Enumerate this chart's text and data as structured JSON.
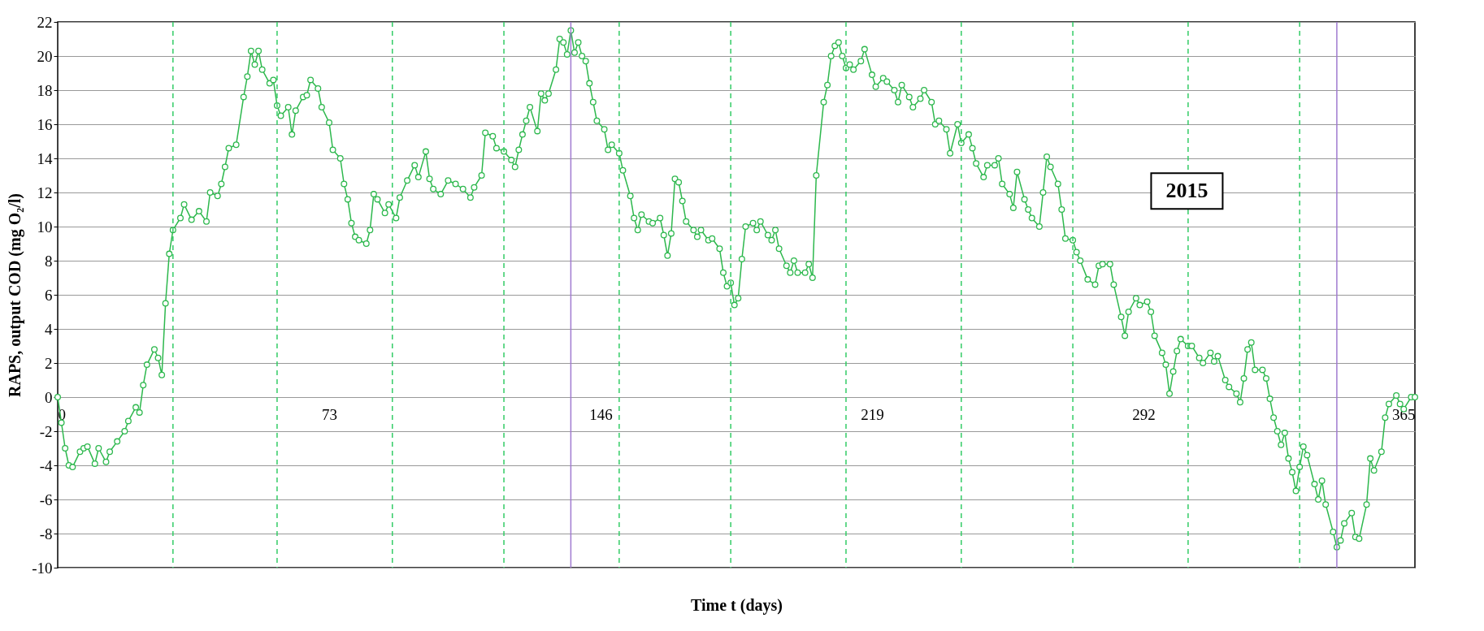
{
  "chart_data": {
    "type": "line",
    "xlabel": "Time t (days)",
    "ylabel": "RAPS, output COD (mg O₂/l)",
    "x": [
      0,
      1,
      2,
      3,
      4,
      6,
      7,
      8,
      10,
      11,
      13,
      14,
      16,
      18,
      19,
      21,
      22,
      23,
      24,
      26,
      27,
      28,
      29,
      30,
      31,
      33,
      34,
      36,
      38,
      40,
      41,
      43,
      44,
      45,
      46,
      48,
      50,
      51,
      52,
      53,
      54,
      55,
      57,
      58,
      59,
      60,
      62,
      63,
      64,
      66,
      67,
      68,
      70,
      71,
      73,
      74,
      76,
      77,
      78,
      79,
      80,
      81,
      83,
      84,
      85,
      86,
      88,
      89,
      91,
      92,
      94,
      96,
      97,
      99,
      100,
      101,
      103,
      105,
      107,
      109,
      111,
      112,
      114,
      115,
      117,
      118,
      120,
      122,
      123,
      124,
      125,
      126,
      127,
      129,
      130,
      131,
      132,
      134,
      135,
      136,
      137,
      138,
      139,
      140,
      141,
      142,
      143,
      144,
      145,
      147,
      148,
      149,
      151,
      152,
      154,
      155,
      156,
      157,
      159,
      160,
      162,
      163,
      164,
      165,
      166,
      167,
      168,
      169,
      171,
      172,
      173,
      175,
      176,
      178,
      179,
      180,
      181,
      182,
      183,
      184,
      185,
      187,
      188,
      189,
      191,
      192,
      193,
      194,
      196,
      197,
      198,
      199,
      201,
      202,
      203,
      204,
      206,
      207,
      208,
      209,
      210,
      211,
      212,
      213,
      214,
      216,
      217,
      219,
      220,
      222,
      223,
      225,
      226,
      227,
      229,
      230,
      232,
      233,
      235,
      236,
      237,
      239,
      240,
      242,
      243,
      245,
      246,
      247,
      249,
      250,
      252,
      253,
      254,
      256,
      257,
      258,
      260,
      261,
      262,
      264,
      265,
      266,
      267,
      269,
      270,
      271,
      273,
      274,
      275,
      277,
      279,
      280,
      281,
      283,
      284,
      286,
      287,
      288,
      290,
      291,
      293,
      294,
      295,
      297,
      298,
      299,
      300,
      301,
      302,
      304,
      305,
      307,
      308,
      310,
      311,
      312,
      314,
      315,
      317,
      318,
      319,
      320,
      321,
      322,
      324,
      325,
      326,
      327,
      328,
      329,
      330,
      331,
      332,
      333,
      334,
      335,
      336,
      338,
      339,
      340,
      341,
      343,
      344,
      345,
      346,
      348,
      349,
      350,
      352,
      353,
      354,
      356,
      357,
      358,
      360,
      361,
      362,
      364,
      365
    ],
    "series": [
      {
        "color": "#2db84d",
        "values": [
          0,
          -1.5,
          -3,
          -4,
          -4.1,
          -3.2,
          -3,
          -2.9,
          -3.9,
          -3,
          -3.8,
          -3.2,
          -2.6,
          -2,
          -1.4,
          -0.6,
          -0.9,
          0.7,
          1.9,
          2.8,
          2.3,
          1.3,
          5.5,
          8.4,
          9.8,
          10.5,
          11.3,
          10.4,
          10.9,
          10.3,
          12,
          11.8,
          12.5,
          13.5,
          14.6,
          14.8,
          17.6,
          18.8,
          20.3,
          19.5,
          20.3,
          19.2,
          18.4,
          18.6,
          17.1,
          16.5,
          17,
          15.4,
          16.8,
          17.6,
          17.7,
          18.6,
          18.1,
          17,
          16.1,
          14.5,
          14,
          12.5,
          11.6,
          10.2,
          9.4,
          9.2,
          9,
          9.8,
          11.9,
          11.6,
          10.8,
          11.3,
          10.5,
          11.7,
          12.7,
          13.6,
          12.9,
          14.4,
          12.8,
          12.2,
          11.9,
          12.7,
          12.5,
          12.2,
          11.7,
          12.3,
          13,
          15.5,
          15.3,
          14.6,
          14.4,
          13.9,
          13.5,
          14.5,
          15.4,
          16.2,
          17,
          15.6,
          17.8,
          17.4,
          17.8,
          19.2,
          21,
          20.8,
          20.1,
          21.5,
          20.2,
          20.8,
          20,
          19.7,
          18.4,
          17.3,
          16.2,
          15.7,
          14.5,
          14.8,
          14.3,
          13.3,
          11.8,
          10.5,
          9.8,
          10.7,
          10.3,
          10.2,
          10.5,
          9.5,
          8.3,
          9.6,
          12.8,
          12.6,
          11.5,
          10.3,
          9.8,
          9.4,
          9.8,
          9.2,
          9.3,
          8.7,
          7.3,
          6.5,
          6.7,
          5.4,
          5.8,
          8.1,
          10,
          10.2,
          9.8,
          10.3,
          9.5,
          9.2,
          9.8,
          8.7,
          7.7,
          7.3,
          8,
          7.3,
          7.3,
          7.8,
          7,
          13,
          17.3,
          18.3,
          20,
          20.6,
          20.8,
          20,
          19.3,
          19.5,
          19.2,
          19.7,
          20.4,
          18.9,
          18.2,
          18.7,
          18.5,
          18,
          17.3,
          18.3,
          17.6,
          17,
          17.5,
          18,
          17.3,
          16,
          16.2,
          15.7,
          14.3,
          16,
          14.9,
          15.4,
          14.6,
          13.7,
          12.9,
          13.6,
          13.6,
          14,
          12.5,
          11.9,
          11.1,
          13.2,
          11.6,
          11,
          10.5,
          10,
          12,
          14.1,
          13.5,
          12.5,
          11,
          9.3,
          9.2,
          8.5,
          8,
          6.9,
          6.6,
          7.7,
          7.8,
          7.8,
          6.6,
          4.7,
          3.6,
          5,
          5.8,
          5.4,
          5.6,
          5,
          3.6,
          2.6,
          1.9,
          0.2,
          1.5,
          2.7,
          3.4,
          3,
          3,
          2.3,
          2,
          2.6,
          2.1,
          2.4,
          1,
          0.6,
          0.2,
          -0.3,
          1.1,
          2.8,
          3.2,
          1.6,
          1.6,
          1.1,
          -0.1,
          -1.2,
          -2,
          -2.8,
          -2.1,
          -3.6,
          -4.4,
          -5.5,
          -4.1,
          -2.9,
          -3.4,
          -5.1,
          -6,
          -4.9,
          -6.3,
          -7.9,
          -8.8,
          -8.4,
          -7.4,
          -6.8,
          -8.2,
          -8.3,
          -6.3,
          -3.6,
          -4.3,
          -3.2,
          -1.2,
          -0.4,
          0.1,
          -0.4,
          -0.7,
          0,
          0
        ]
      }
    ],
    "marker": "circle",
    "line_style": "solid",
    "xlim": [
      0,
      365
    ],
    "xticks": [
      0,
      73,
      146,
      219,
      292,
      365
    ],
    "ylim": [
      -10,
      22
    ],
    "yticks": [
      -10,
      -8,
      -6,
      -4,
      -2,
      0,
      2,
      4,
      6,
      8,
      10,
      12,
      14,
      16,
      18,
      20,
      22
    ],
    "grid": "y",
    "ref_lines": [
      {
        "axis": "x",
        "value": 31,
        "color": "#33cc66",
        "line_style": "dashed"
      },
      {
        "axis": "x",
        "value": 59,
        "color": "#33cc66",
        "line_style": "dashed"
      },
      {
        "axis": "x",
        "value": 90,
        "color": "#33cc66",
        "line_style": "dashed"
      },
      {
        "axis": "x",
        "value": 120,
        "color": "#33cc66",
        "line_style": "dashed"
      },
      {
        "axis": "x",
        "value": 151,
        "color": "#33cc66",
        "line_style": "dashed"
      },
      {
        "axis": "x",
        "value": 181,
        "color": "#33cc66",
        "line_style": "dashed"
      },
      {
        "axis": "x",
        "value": 212,
        "color": "#33cc66",
        "line_style": "dashed"
      },
      {
        "axis": "x",
        "value": 243,
        "color": "#33cc66",
        "line_style": "dashed"
      },
      {
        "axis": "x",
        "value": 273,
        "color": "#33cc66",
        "line_style": "dashed"
      },
      {
        "axis": "x",
        "value": 304,
        "color": "#33cc66",
        "line_style": "dashed"
      },
      {
        "axis": "x",
        "value": 334,
        "color": "#33cc66",
        "line_style": "dashed"
      },
      {
        "axis": "x",
        "value": 138,
        "color": "#a07ad0",
        "line_style": "solid"
      },
      {
        "axis": "x",
        "value": 344,
        "color": "#a07ad0",
        "line_style": "solid"
      }
    ],
    "annotations": [
      "2015"
    ]
  }
}
